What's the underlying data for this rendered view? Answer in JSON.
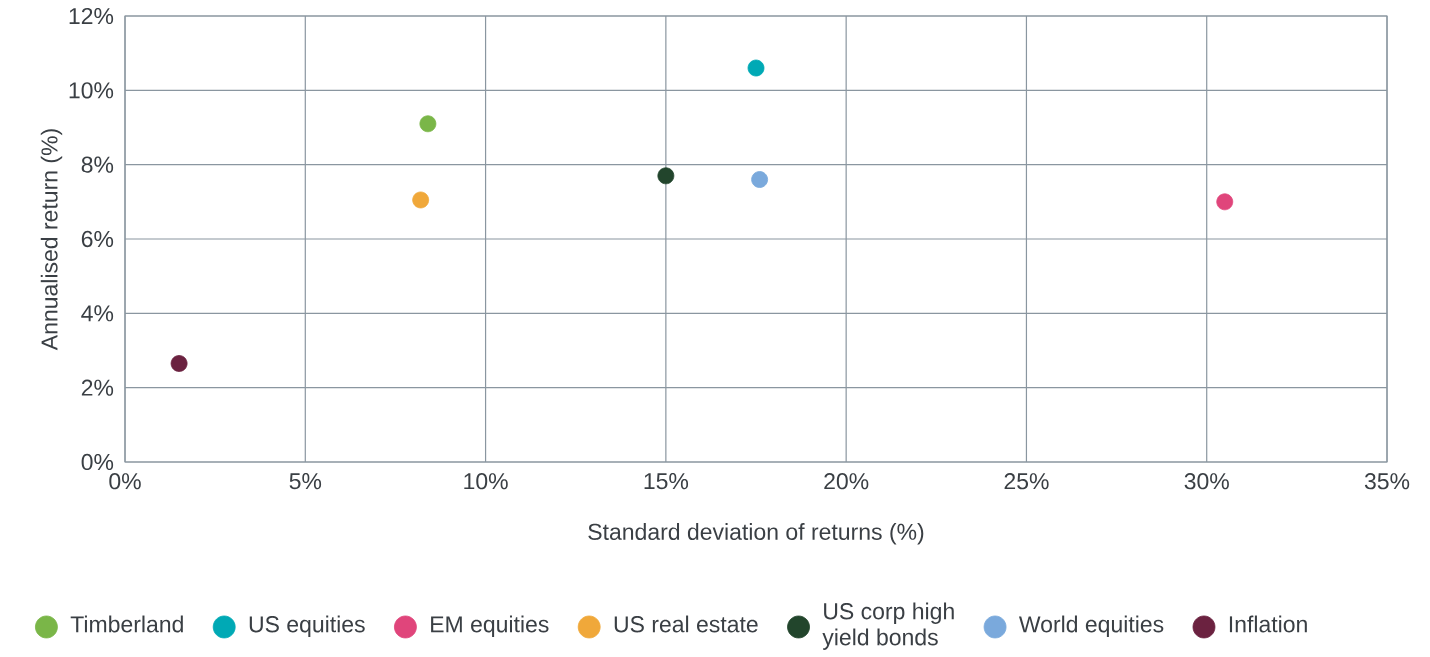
{
  "chart_data": {
    "type": "scatter",
    "xlabel": "Standard deviation of returns (%)",
    "ylabel": "Annualised return (%)",
    "series": [
      {
        "name": "Timberland",
        "color": "#7ab648",
        "x": [
          8.4
        ],
        "values": [
          9.1
        ]
      },
      {
        "name": "US equities",
        "color": "#00a9b5",
        "x": [
          17.5
        ],
        "values": [
          10.6
        ]
      },
      {
        "name": "EM equities",
        "color": "#e0457b",
        "x": [
          30.5
        ],
        "values": [
          7.0
        ]
      },
      {
        "name": "US real estate",
        "color": "#f0a83a",
        "x": [
          8.2
        ],
        "values": [
          7.05
        ]
      },
      {
        "name": "US corp high yield bonds",
        "color": "#22452c",
        "x": [
          15.0
        ],
        "values": [
          7.7
        ]
      },
      {
        "name": "World equities",
        "color": "#7aa9dc",
        "x": [
          17.6
        ],
        "values": [
          7.6
        ]
      },
      {
        "name": "Inflation",
        "color": "#6b2240",
        "x": [
          1.5
        ],
        "values": [
          2.65
        ]
      }
    ],
    "xlim": [
      0,
      35
    ],
    "ylim": [
      0,
      12
    ],
    "xticks": [
      {
        "value": 0,
        "label": "0%"
      },
      {
        "value": 5,
        "label": "5%"
      },
      {
        "value": 10,
        "label": "10%"
      },
      {
        "value": 15,
        "label": "15%"
      },
      {
        "value": 20,
        "label": "20%"
      },
      {
        "value": 25,
        "label": "25%"
      },
      {
        "value": 30,
        "label": "30%"
      },
      {
        "value": 35,
        "label": "35%"
      }
    ],
    "yticks": [
      {
        "value": 0,
        "label": "0%"
      },
      {
        "value": 2,
        "label": "2%"
      },
      {
        "value": 4,
        "label": "4%"
      },
      {
        "value": 6,
        "label": "6%"
      },
      {
        "value": 8,
        "label": "8%"
      },
      {
        "value": 10,
        "label": "10%"
      },
      {
        "value": 12,
        "label": "12%"
      }
    ],
    "grid": true,
    "legend": "bottom",
    "marker": "circle"
  }
}
